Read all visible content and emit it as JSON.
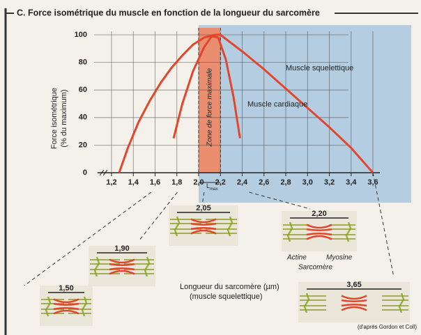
{
  "chart_data": {
    "type": "line",
    "title": "C. Force isométrique du muscle en fonction de la longueur du sarcomère",
    "y_label": "Force isométrique",
    "y_label_2": "(% du maximum)",
    "x_label": "Longueur du sarcomère (µm)",
    "x_label_2": "(muscle squelettique)",
    "xlim": [
      1.2,
      3.6
    ],
    "ylim": [
      0,
      100
    ],
    "xticks": [
      {
        "value": 1.2,
        "label": "1,2"
      },
      {
        "value": 1.4,
        "label": "1,4"
      },
      {
        "value": 1.6,
        "label": "1,6"
      },
      {
        "value": 1.8,
        "label": "1,8"
      },
      {
        "value": 2.0,
        "label": "2,0"
      },
      {
        "value": 2.2,
        "label": "2,2"
      },
      {
        "value": 2.4,
        "label": "2,4"
      },
      {
        "value": 2.6,
        "label": "2,6"
      },
      {
        "value": 2.8,
        "label": "2,8"
      },
      {
        "value": 3.0,
        "label": "3,0"
      },
      {
        "value": 3.2,
        "label": "3,2"
      },
      {
        "value": 3.4,
        "label": "3,4"
      },
      {
        "value": 3.6,
        "label": "3,6"
      }
    ],
    "yticks": [
      0,
      20,
      40,
      60,
      80,
      100
    ],
    "grid": true,
    "series": [
      {
        "name": "Muscle squelettique",
        "color": "#e2462c",
        "x": [
          1.27,
          1.35,
          1.45,
          1.55,
          1.65,
          1.75,
          1.85,
          1.95,
          2.05,
          2.15,
          2.2,
          2.4,
          2.6,
          2.8,
          3.0,
          3.2,
          3.4,
          3.6
        ],
        "values": [
          0,
          18,
          37,
          52,
          65,
          76,
          85,
          93,
          98,
          100,
          100,
          88,
          75,
          61,
          47,
          33,
          18,
          0
        ]
      },
      {
        "name": "Muscle cardiaque",
        "color": "#e2462c",
        "x": [
          1.77,
          1.85,
          1.95,
          2.05,
          2.12,
          2.18,
          2.25,
          2.32,
          2.38
        ],
        "values": [
          25,
          50,
          74,
          91,
          99,
          98,
          82,
          55,
          25
        ]
      }
    ],
    "band": {
      "from": 2.0,
      "to": 2.2,
      "label": "Zone de force maximale",
      "color": "#eb8e6f"
    },
    "lmax": {
      "main": "L",
      "sub": "max"
    },
    "sarcomeres": [
      "1,50",
      "1,90",
      "2,05",
      "2,20",
      "3,65"
    ],
    "actine": "Actine",
    "myosine": "Myosine",
    "sarcomere_label": "Sarcomère",
    "source": "(d'après Gordon et Coll)"
  }
}
